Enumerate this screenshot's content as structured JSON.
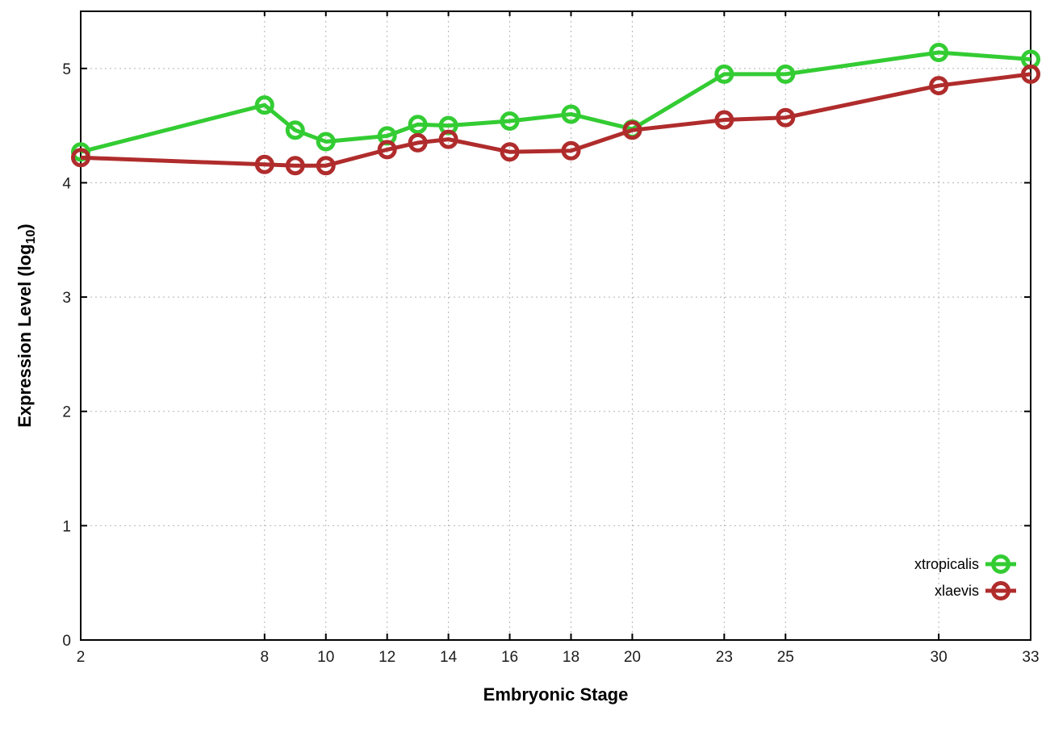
{
  "page": {
    "background": "#ffffff",
    "description_title": ""
  },
  "colors": {
    "plot_border": "#000000",
    "grid": "#b4b4b4",
    "tick_label": "#1c1c1c",
    "axis_title": "#000000",
    "xtropicalis_green": "#33cc33",
    "xlaevis_red": "#b02c2c"
  },
  "chart_data": {
    "type": "line",
    "title": "",
    "xlabel": "Embryonic Stage",
    "ylabel": "Expression Level (log10)",
    "ylabel_parts": {
      "pre": "Expression Level (log",
      "sub": "10",
      "post": ")"
    },
    "x": [
      2,
      8,
      9,
      10,
      12,
      13,
      14,
      16,
      18,
      20,
      23,
      25,
      30,
      33
    ],
    "series": [
      {
        "name": "xtropicalis",
        "color": "#33cc33",
        "marker": "open-circle",
        "values": [
          4.27,
          4.68,
          4.46,
          4.36,
          4.41,
          4.51,
          4.5,
          4.54,
          4.6,
          4.47,
          4.95,
          4.95,
          5.14,
          5.08
        ]
      },
      {
        "name": "xlaevis",
        "color": "#b02c2c",
        "marker": "open-circle",
        "values": [
          4.22,
          4.16,
          4.15,
          4.15,
          4.29,
          4.35,
          4.38,
          4.27,
          4.28,
          4.46,
          4.55,
          4.57,
          4.85,
          4.95
        ]
      }
    ],
    "xticks": {
      "values": [
        2,
        8,
        10,
        12,
        14,
        16,
        18,
        20,
        23,
        25,
        30,
        33
      ],
      "labels": [
        "2",
        "8",
        "10",
        "12",
        "14",
        "16",
        "18",
        "20",
        "23",
        "25",
        "30",
        "33"
      ]
    },
    "yticks": {
      "values": [
        0,
        1,
        2,
        3,
        4,
        5
      ],
      "labels": [
        "0",
        "1",
        "2",
        "3",
        "4",
        "5"
      ]
    },
    "xlim": [
      2,
      33
    ],
    "ylim": [
      0,
      5.5
    ],
    "grid": true,
    "grid_style": "dotted",
    "legend": {
      "position": "inside-bottom-right",
      "entries": [
        "xtropicalis",
        "xlaevis"
      ]
    }
  }
}
